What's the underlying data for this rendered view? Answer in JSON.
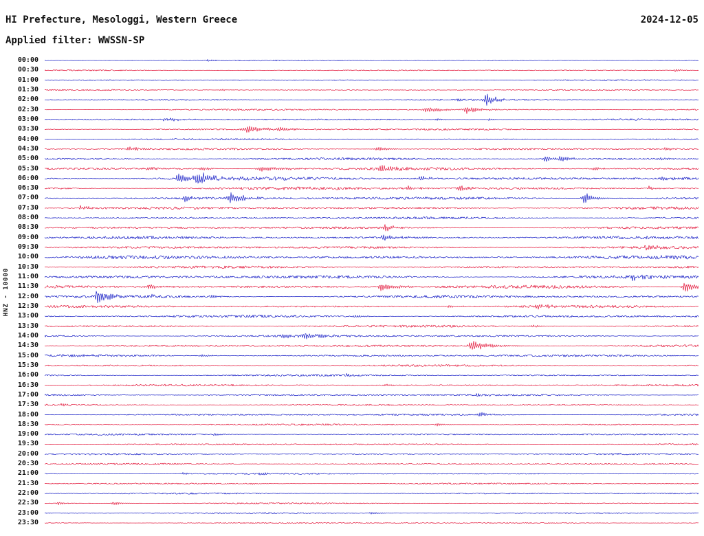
{
  "header": {
    "title": "HI Prefecture, Mesologgi, Western Greece",
    "date": "2024-12-05",
    "filter": "Applied filter: WWSSN-SP"
  },
  "chart_data": {
    "type": "line",
    "subtype": "helicorder-seismogram-dayplot",
    "title": "HI Prefecture, Mesologgi, Western Greece",
    "date": "2024-12-05",
    "filter": "WWSSN-SP",
    "ylabel": "HNZ - 10000",
    "row_interval": "30 minutes per trace line",
    "x_range": [
      "00:00",
      "24:00"
    ],
    "grid": false,
    "legend": "none",
    "colors": {
      "blue": "#0008c0",
      "red": "#e00028"
    },
    "rows": [
      {
        "time": "00:00",
        "color": "blue",
        "noise": 0.7,
        "events": [
          {
            "x": 0.25,
            "amp": 1.2,
            "w": 5
          }
        ]
      },
      {
        "time": "00:30",
        "color": "red",
        "noise": 0.7,
        "events": [
          {
            "x": 0.965,
            "amp": 1.5,
            "w": 6
          }
        ]
      },
      {
        "time": "01:00",
        "color": "blue",
        "noise": 0.7,
        "events": []
      },
      {
        "time": "01:30",
        "color": "red",
        "noise": 0.75,
        "events": [
          {
            "x": 0.27,
            "amp": 1.2,
            "w": 4
          }
        ]
      },
      {
        "time": "02:00",
        "color": "blue",
        "noise": 0.9,
        "events": [
          {
            "x": 0.675,
            "amp": 8,
            "w": 6
          },
          {
            "x": 0.63,
            "amp": 1.5,
            "w": 4
          }
        ]
      },
      {
        "time": "02:30",
        "color": "red",
        "noise": 1.0,
        "events": [
          {
            "x": 0.585,
            "amp": 3,
            "w": 10
          },
          {
            "x": 0.645,
            "amp": 4.5,
            "w": 8
          }
        ]
      },
      {
        "time": "03:00",
        "color": "blue",
        "noise": 1.0,
        "events": [
          {
            "x": 0.185,
            "amp": 2.5,
            "w": 8
          },
          {
            "x": 0.6,
            "amp": 1.5,
            "w": 4
          },
          {
            "x": 0.68,
            "amp": 1.5,
            "w": 3
          }
        ]
      },
      {
        "time": "03:30",
        "color": "red",
        "noise": 1.2,
        "events": [
          {
            "x": 0.31,
            "amp": 3.5,
            "w": 14
          },
          {
            "x": 0.36,
            "amp": 2,
            "w": 8
          }
        ]
      },
      {
        "time": "04:00",
        "color": "blue",
        "noise": 0.9,
        "events": []
      },
      {
        "time": "04:30",
        "color": "red",
        "noise": 1.2,
        "events": [
          {
            "x": 0.13,
            "amp": 2.2,
            "w": 8
          },
          {
            "x": 0.51,
            "amp": 2.2,
            "w": 8
          },
          {
            "x": 0.95,
            "amp": 1.8,
            "w": 6
          }
        ]
      },
      {
        "time": "05:00",
        "color": "blue",
        "noise": 1.4,
        "events": [
          {
            "x": 0.765,
            "amp": 3,
            "w": 8
          },
          {
            "x": 0.79,
            "amp": 2.5,
            "w": 6
          },
          {
            "x": 0.94,
            "amp": 2,
            "w": 6
          }
        ]
      },
      {
        "time": "05:30",
        "color": "red",
        "noise": 1.7,
        "events": [
          {
            "x": 0.155,
            "amp": 2.5,
            "w": 6
          },
          {
            "x": 0.24,
            "amp": 2.2,
            "w": 6
          },
          {
            "x": 0.335,
            "amp": 2.8,
            "w": 18
          },
          {
            "x": 0.515,
            "amp": 5.5,
            "w": 8
          },
          {
            "x": 0.84,
            "amp": 2.2,
            "w": 6
          }
        ]
      },
      {
        "time": "06:00",
        "color": "blue",
        "noise": 2.2,
        "events": [
          {
            "x": 0.205,
            "amp": 5.5,
            "w": 8
          },
          {
            "x": 0.235,
            "amp": 7,
            "w": 8
          },
          {
            "x": 0.575,
            "amp": 3,
            "w": 6
          },
          {
            "x": 0.945,
            "amp": 2.8,
            "w": 6
          }
        ]
      },
      {
        "time": "06:30",
        "color": "red",
        "noise": 2.0,
        "events": [
          {
            "x": 0.555,
            "amp": 2.5,
            "w": 6
          },
          {
            "x": 0.635,
            "amp": 3.5,
            "w": 6
          },
          {
            "x": 0.925,
            "amp": 2.8,
            "w": 5
          }
        ]
      },
      {
        "time": "07:00",
        "color": "blue",
        "noise": 1.8,
        "events": [
          {
            "x": 0.215,
            "amp": 4.5,
            "w": 6
          },
          {
            "x": 0.285,
            "amp": 7,
            "w": 8
          },
          {
            "x": 0.825,
            "amp": 7,
            "w": 6
          }
        ]
      },
      {
        "time": "07:30",
        "color": "red",
        "noise": 1.7,
        "events": [
          {
            "x": 0.055,
            "amp": 2.8,
            "w": 6
          }
        ]
      },
      {
        "time": "08:00",
        "color": "blue",
        "noise": 1.4,
        "events": []
      },
      {
        "time": "08:30",
        "color": "red",
        "noise": 1.5,
        "events": [
          {
            "x": 0.52,
            "amp": 4,
            "w": 6
          }
        ]
      },
      {
        "time": "09:00",
        "color": "blue",
        "noise": 1.8,
        "events": [
          {
            "x": 0.52,
            "amp": 4,
            "w": 8
          }
        ]
      },
      {
        "time": "09:30",
        "color": "red",
        "noise": 1.6,
        "events": [
          {
            "x": 0.92,
            "amp": 2.8,
            "w": 8
          }
        ]
      },
      {
        "time": "10:00",
        "color": "blue",
        "noise": 2.2,
        "events": []
      },
      {
        "time": "10:30",
        "color": "red",
        "noise": 1.6,
        "events": []
      },
      {
        "time": "11:00",
        "color": "blue",
        "noise": 2.0,
        "events": [
          {
            "x": 0.9,
            "amp": 2.6,
            "w": 8
          }
        ]
      },
      {
        "time": "11:30",
        "color": "red",
        "noise": 2.0,
        "events": [
          {
            "x": 0.16,
            "amp": 3.5,
            "w": 8
          },
          {
            "x": 0.515,
            "amp": 4.5,
            "w": 10
          },
          {
            "x": 0.98,
            "amp": 5.5,
            "w": 8
          }
        ]
      },
      {
        "time": "12:00",
        "color": "blue",
        "noise": 1.8,
        "events": [
          {
            "x": 0.08,
            "amp": 8,
            "w": 8
          },
          {
            "x": 0.165,
            "amp": 2,
            "w": 5
          },
          {
            "x": 0.255,
            "amp": 2,
            "w": 5
          }
        ]
      },
      {
        "time": "12:30",
        "color": "red",
        "noise": 1.6,
        "events": [
          {
            "x": 0.62,
            "amp": 2,
            "w": 5
          },
          {
            "x": 0.755,
            "amp": 3.5,
            "w": 7
          }
        ]
      },
      {
        "time": "13:00",
        "color": "blue",
        "noise": 1.6,
        "events": [
          {
            "x": 0.475,
            "amp": 2,
            "w": 6
          }
        ]
      },
      {
        "time": "13:30",
        "color": "red",
        "noise": 1.4,
        "events": [
          {
            "x": 0.745,
            "amp": 2,
            "w": 6
          }
        ]
      },
      {
        "time": "14:00",
        "color": "blue",
        "noise": 1.4,
        "events": [
          {
            "x": 0.365,
            "amp": 2.5,
            "w": 6
          },
          {
            "x": 0.4,
            "amp": 3.5,
            "w": 12
          }
        ]
      },
      {
        "time": "14:30",
        "color": "red",
        "noise": 1.4,
        "events": [
          {
            "x": 0.655,
            "amp": 5.5,
            "w": 12
          }
        ]
      },
      {
        "time": "15:00",
        "color": "blue",
        "noise": 1.4,
        "events": [
          {
            "x": 0.24,
            "amp": 2,
            "w": 5
          }
        ]
      },
      {
        "time": "15:30",
        "color": "red",
        "noise": 1.2,
        "events": []
      },
      {
        "time": "16:00",
        "color": "blue",
        "noise": 1.2,
        "events": [
          {
            "x": 0.46,
            "amp": 1.8,
            "w": 5
          }
        ]
      },
      {
        "time": "16:30",
        "color": "red",
        "noise": 1.2,
        "events": [
          {
            "x": 0.52,
            "amp": 1.6,
            "w": 5
          }
        ]
      },
      {
        "time": "17:00",
        "color": "blue",
        "noise": 1.2,
        "events": [
          {
            "x": 0.34,
            "amp": 1.8,
            "w": 5
          },
          {
            "x": 0.66,
            "amp": 1.8,
            "w": 5
          }
        ]
      },
      {
        "time": "17:30",
        "color": "red",
        "noise": 1.0,
        "events": [
          {
            "x": 0.025,
            "amp": 2,
            "w": 5
          }
        ]
      },
      {
        "time": "18:00",
        "color": "blue",
        "noise": 1.2,
        "events": [
          {
            "x": 0.665,
            "amp": 3,
            "w": 6
          }
        ]
      },
      {
        "time": "18:30",
        "color": "red",
        "noise": 1.0,
        "events": [
          {
            "x": 0.6,
            "amp": 2,
            "w": 5
          }
        ]
      },
      {
        "time": "19:00",
        "color": "blue",
        "noise": 1.0,
        "events": [
          {
            "x": 0.26,
            "amp": 1.6,
            "w": 4
          }
        ]
      },
      {
        "time": "19:30",
        "color": "red",
        "noise": 0.9,
        "events": []
      },
      {
        "time": "20:00",
        "color": "blue",
        "noise": 1.0,
        "events": [
          {
            "x": 0.865,
            "amp": 1.8,
            "w": 5
          }
        ]
      },
      {
        "time": "20:30",
        "color": "red",
        "noise": 0.9,
        "events": []
      },
      {
        "time": "21:00",
        "color": "blue",
        "noise": 0.9,
        "events": [
          {
            "x": 0.21,
            "amp": 1.8,
            "w": 4
          },
          {
            "x": 0.33,
            "amp": 1.6,
            "w": 4
          }
        ]
      },
      {
        "time": "21:30",
        "color": "red",
        "noise": 0.9,
        "events": [
          {
            "x": 0.315,
            "amp": 1.4,
            "w": 4
          }
        ]
      },
      {
        "time": "22:00",
        "color": "blue",
        "noise": 0.9,
        "events": []
      },
      {
        "time": "22:30",
        "color": "red",
        "noise": 0.8,
        "events": [
          {
            "x": 0.02,
            "amp": 2,
            "w": 4
          },
          {
            "x": 0.105,
            "amp": 2.5,
            "w": 5
          }
        ]
      },
      {
        "time": "23:00",
        "color": "blue",
        "noise": 0.8,
        "events": [
          {
            "x": 0.5,
            "amp": 1.5,
            "w": 6
          }
        ]
      },
      {
        "time": "23:30",
        "color": "red",
        "noise": 0.8,
        "events": []
      }
    ]
  }
}
